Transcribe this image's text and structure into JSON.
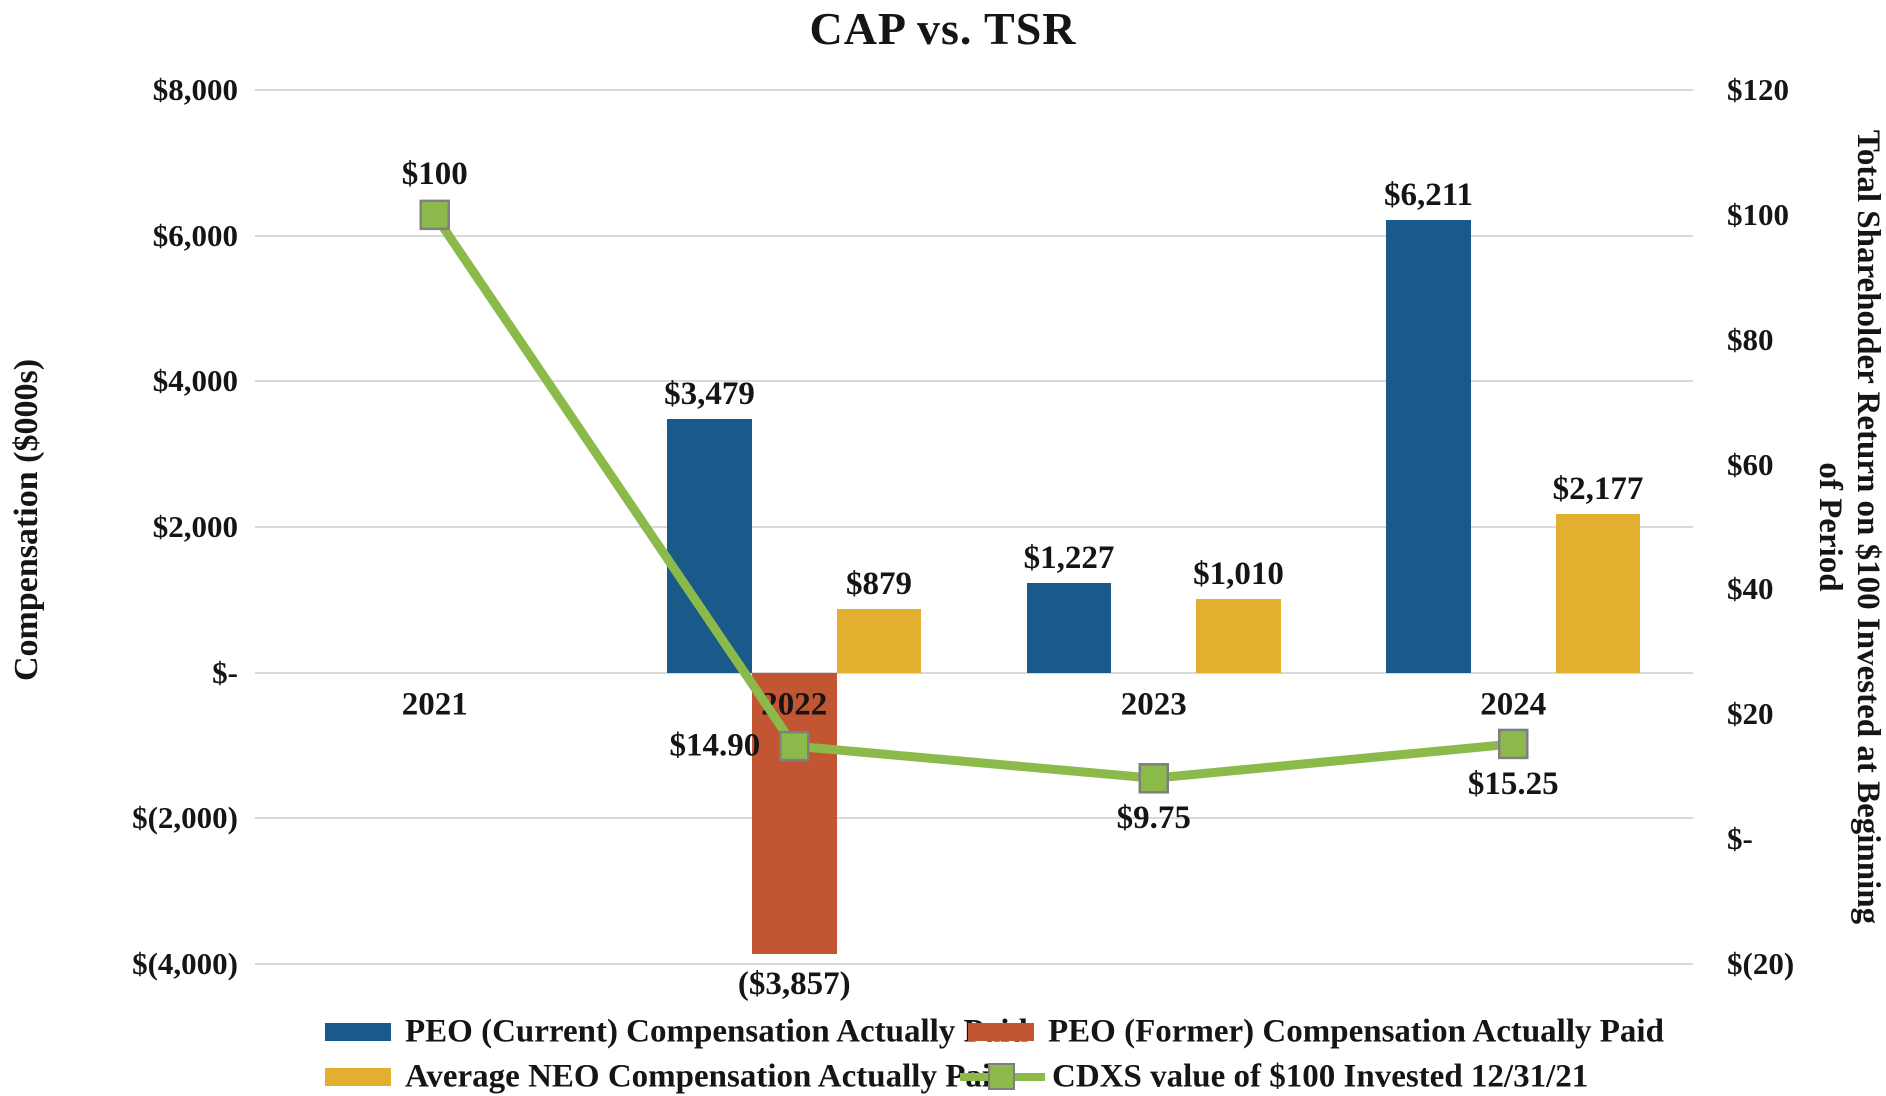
{
  "chart_data": {
    "type": "combo-bar-line",
    "title": "CAP vs. TSR",
    "categories": [
      "2021",
      "2022",
      "2023",
      "2024"
    ],
    "left_axis": {
      "title": "Compensation ($000s)",
      "tick_labels": [
        "$8,000",
        "$6,000",
        "$4,000",
        "$2,000",
        "$-",
        "$(2,000)",
        "$(4,000)"
      ],
      "max": 8000,
      "min": -4000,
      "step": 2000
    },
    "right_axis": {
      "title_line1": "Total Shareholder Return on $100 Invested at Beginning",
      "title_line2": "of Period",
      "tick_labels": [
        "$120",
        "$100",
        "$80",
        "$60",
        "$40",
        "$20",
        "$-",
        "$(20)"
      ],
      "max": 120,
      "min": -20,
      "step": 20
    },
    "bar_series": [
      {
        "name": "PEO (Current) Compensation Actually Paid",
        "color": "#1A5A8A",
        "values": [
          null,
          3479,
          1227,
          6211
        ],
        "labels": [
          null,
          "$3,479",
          "$1,227",
          "$6,211"
        ]
      },
      {
        "name": "PEO (Former) Compensation Actually Paid",
        "color": "#C25532",
        "values": [
          null,
          -3857,
          null,
          null
        ],
        "labels": [
          null,
          "($3,857)",
          null,
          null
        ]
      },
      {
        "name": "Average NEO Compensation Actually Paid",
        "color": "#E0B02E",
        "values": [
          null,
          879,
          1010,
          2177
        ],
        "labels": [
          null,
          "$879",
          "$1,010",
          "$2,177"
        ]
      }
    ],
    "line_series": {
      "name": "CDXS value of $100 Invested 12/31/21",
      "color": "#8CBA4A",
      "marker_border": "#7F7F7F",
      "values": [
        100,
        14.9,
        9.75,
        15.25
      ],
      "labels": [
        "$100",
        "$14.90",
        "$9.75",
        "$15.25"
      ],
      "label_positions": [
        "above",
        "left",
        "below",
        "below"
      ]
    },
    "gridline_color": "#D9D9D9",
    "legend_position": "bottom"
  }
}
